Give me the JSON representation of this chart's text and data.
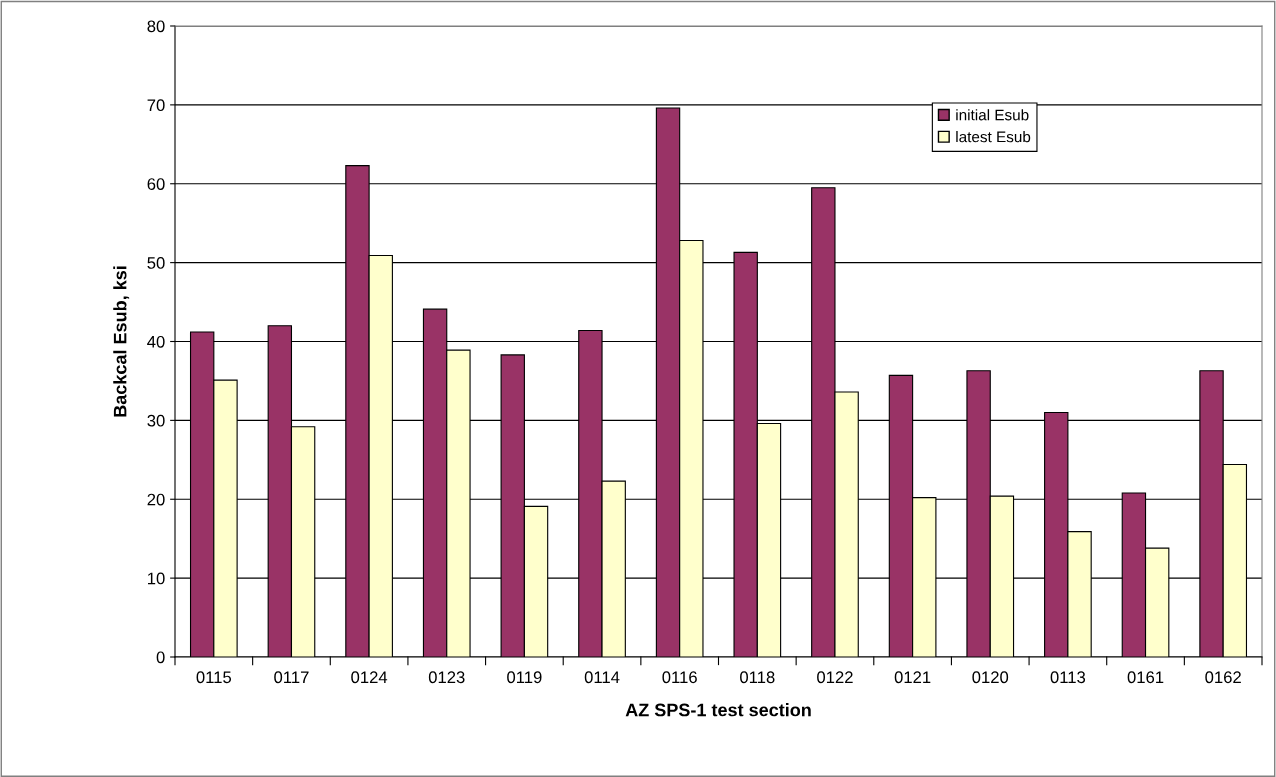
{
  "chart_data": {
    "type": "bar",
    "xlabel": "AZ SPS-1 test section",
    "ylabel": "Backcal Esub, ksi",
    "categories": [
      "0115",
      "0117",
      "0124",
      "0123",
      "0119",
      "0114",
      "0116",
      "0118",
      "0122",
      "0121",
      "0120",
      "0113",
      "0161",
      "0162"
    ],
    "series": [
      {
        "name": "initial Esub",
        "color": "#993366",
        "values": [
          41.2,
          42.0,
          62.3,
          44.1,
          38.3,
          41.4,
          69.6,
          51.3,
          59.5,
          35.7,
          36.3,
          31.0,
          20.8,
          36.3
        ]
      },
      {
        "name": "latest Esub",
        "color": "#ffffcc",
        "values": [
          35.1,
          29.2,
          50.9,
          38.9,
          19.1,
          22.3,
          52.8,
          29.6,
          33.6,
          20.2,
          20.4,
          15.9,
          13.8,
          24.4
        ]
      }
    ],
    "ylim": [
      0,
      80
    ],
    "yticks": [
      0,
      10,
      20,
      30,
      40,
      50,
      60,
      70,
      80
    ],
    "grid": "y",
    "legend": "top right"
  }
}
